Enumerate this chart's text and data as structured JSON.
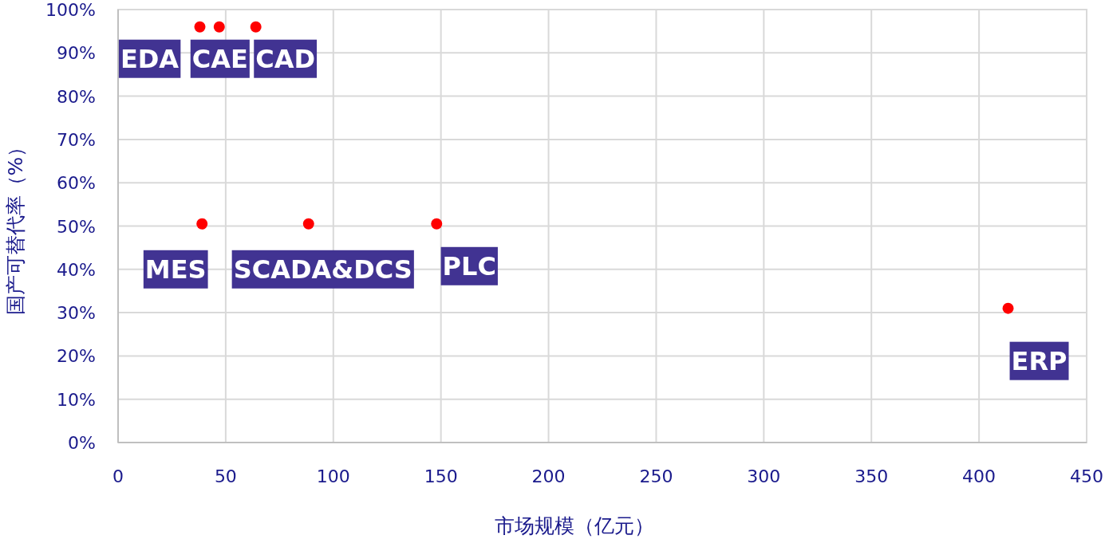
{
  "chart_data": {
    "type": "scatter",
    "xlabel": "市场规模（亿元）",
    "ylabel": "国产可替代率（%）",
    "x": [
      38,
      47,
      64,
      39,
      88.5,
      148,
      413.5
    ],
    "series": [
      {
        "color": "#ff0000",
        "values": [
          96,
          96,
          96,
          50.5,
          50.5,
          50.5,
          31
        ]
      }
    ],
    "marker": "circle",
    "grid": true,
    "xlim": [
      0,
      450
    ],
    "xticks": [
      0,
      50,
      100,
      150,
      200,
      250,
      300,
      350,
      400,
      450
    ],
    "ylim": [
      0,
      100
    ],
    "yticks": [
      {
        "value": 0,
        "label": "0%"
      },
      {
        "value": 10,
        "label": "10%"
      },
      {
        "value": 20,
        "label": "20%"
      },
      {
        "value": 30,
        "label": "30%"
      },
      {
        "value": 40,
        "label": "40%"
      },
      {
        "value": 50,
        "label": "50%"
      },
      {
        "value": 60,
        "label": "60%"
      },
      {
        "value": 70,
        "label": "70%"
      },
      {
        "value": 80,
        "label": "80%"
      },
      {
        "value": 90,
        "label": "90%"
      },
      {
        "value": 100,
        "label": "100%"
      }
    ],
    "annotations": [
      {
        "text": "EDA",
        "x": 38,
        "y": 96
      },
      {
        "text": "CAE",
        "x": 47,
        "y": 96
      },
      {
        "text": "CAD",
        "x": 64,
        "y": 96
      },
      {
        "text": "MES",
        "x": 39,
        "y": 50.5
      },
      {
        "text": "SCADA&DCS",
        "x": 88.5,
        "y": 50.5
      },
      {
        "text": "PLC",
        "x": 148,
        "y": 50.5
      },
      {
        "text": "ERP",
        "x": 413.5,
        "y": 31
      }
    ]
  }
}
